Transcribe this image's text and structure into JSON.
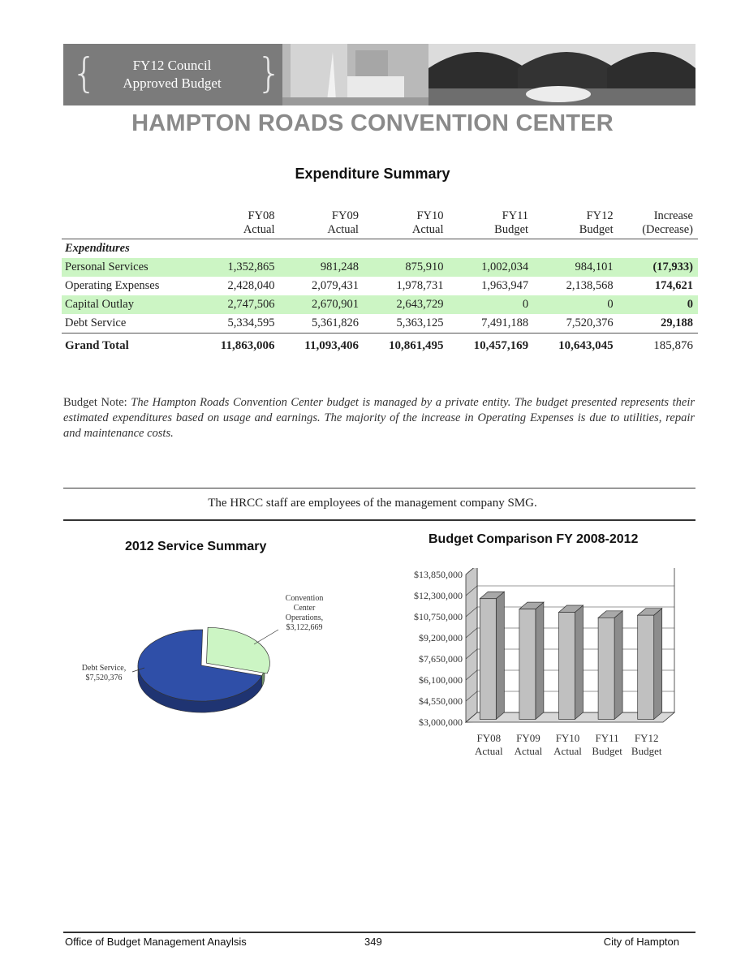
{
  "banner": {
    "line1": "FY12 Council",
    "line2": "Approved Budget"
  },
  "page_title": "HAMPTON ROADS CONVENTION CENTER",
  "expenditure": {
    "title": "Expenditure Summary",
    "columns": [
      {
        "l1": "FY08",
        "l2": "Actual"
      },
      {
        "l1": "FY09",
        "l2": "Actual"
      },
      {
        "l1": "FY10",
        "l2": "Actual"
      },
      {
        "l1": "FY11",
        "l2": "Budget"
      },
      {
        "l1": "FY12",
        "l2": "Budget"
      },
      {
        "l1": "Increase",
        "l2": "(Decrease)"
      }
    ],
    "section_label": "Expenditures",
    "rows": [
      {
        "label": "Personal Services",
        "values": [
          "1,352,865",
          "981,248",
          "875,910",
          "1,002,034",
          "984,101",
          "(17,933)"
        ]
      },
      {
        "label": "Operating Expenses",
        "values": [
          "2,428,040",
          "2,079,431",
          "1,978,731",
          "1,963,947",
          "2,138,568",
          "174,621"
        ]
      },
      {
        "label": "Capital Outlay",
        "values": [
          "2,747,506",
          "2,670,901",
          "2,643,729",
          "0",
          "0",
          "0"
        ]
      },
      {
        "label": "Debt Service",
        "values": [
          "5,334,595",
          "5,361,826",
          "5,363,125",
          "7,491,188",
          "7,520,376",
          "29,188"
        ]
      }
    ],
    "total": {
      "label": "Grand Total",
      "values": [
        "11,863,006",
        "11,093,406",
        "10,861,495",
        "10,457,169",
        "10,643,045",
        "185,876"
      ]
    }
  },
  "note": {
    "lead": "Budget Note:",
    "body": "The Hampton Roads Convention Center budget is managed by a private entity.  The budget presented represents their estimated expenditures based on usage and earnings. The majority of the increase in Operating Expenses is due to utilities, repair and maintenance costs."
  },
  "staff_note": "The HRCC staff are employees of the management company SMG.",
  "service_summary": {
    "title": "2012 Service Summary",
    "slices": [
      {
        "label_lines": [
          "Convention",
          "Center",
          "Operations,",
          "$3,122,669"
        ],
        "value": 3122669,
        "color": "#ccf5c4"
      },
      {
        "label_lines": [
          "Debt Service,",
          "$7,520,376"
        ],
        "value": 7520376,
        "color": "#2f4fa8"
      }
    ]
  },
  "chart_data": {
    "type": "bar",
    "title": "Budget Comparison FY 2008-2012",
    "categories": [
      [
        "FY08",
        "Actual"
      ],
      [
        "FY09",
        "Actual"
      ],
      [
        "FY10",
        "Actual"
      ],
      [
        "FY11",
        "Budget"
      ],
      [
        "FY12",
        "Budget"
      ]
    ],
    "values": [
      11863006,
      11093406,
      10861495,
      10457169,
      10643045
    ],
    "ylim": [
      3000000,
      13850000
    ],
    "yticks": [
      "$3,000,000",
      "$4,550,000",
      "$6,100,000",
      "$7,650,000",
      "$9,200,000",
      "$10,750,000",
      "$12,300,000",
      "$13,850,000"
    ],
    "bar_color": "#c0c0c0"
  },
  "footer": {
    "left": "Office of Budget Management Anaylsis",
    "center": "349",
    "right": "City of Hampton"
  }
}
